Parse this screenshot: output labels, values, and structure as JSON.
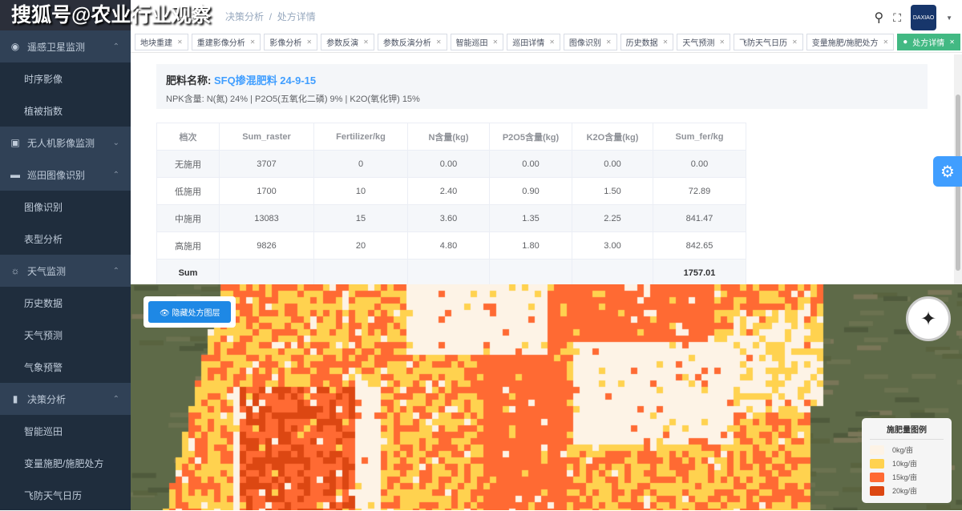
{
  "watermark": "搜狐号@农业行业观察",
  "sidebar": {
    "items": [
      {
        "label": "遥感卫星监测",
        "group": true,
        "icon": "eye-icon",
        "glyph": "◉",
        "chev": "⌃"
      },
      {
        "label": "时序影像"
      },
      {
        "label": "植被指数"
      },
      {
        "label": "无人机影像监测",
        "group": true,
        "icon": "camera-icon",
        "glyph": "▣",
        "chev": "⌄"
      },
      {
        "label": "巡田图像识别",
        "group": true,
        "icon": "truck-icon",
        "glyph": "▬",
        "chev": "⌃"
      },
      {
        "label": "图像识别"
      },
      {
        "label": "表型分析"
      },
      {
        "label": "天气监测",
        "group": true,
        "icon": "sun-icon",
        "glyph": "☼",
        "chev": "⌃"
      },
      {
        "label": "历史数据"
      },
      {
        "label": "天气预测"
      },
      {
        "label": "气象预警"
      },
      {
        "label": "决策分析",
        "group": true,
        "icon": "bar-chart-icon",
        "glyph": "▮",
        "chev": "⌃"
      },
      {
        "label": "智能巡田"
      },
      {
        "label": "变量施肥/施肥处方"
      },
      {
        "label": "飞防天气日历"
      }
    ]
  },
  "breadcrumb": {
    "parent": "决策分析",
    "sep": "/",
    "current": "处方详情"
  },
  "header": {
    "avatar_text": "DAXIAO"
  },
  "tags": [
    "地块重建",
    "重建影像分析",
    "影像分析",
    "参数反演",
    "参数反演分析",
    "智能巡田",
    "巡田详情",
    "图像识别",
    "历史数据",
    "天气预测",
    "飞防天气日历",
    "变量施肥/施肥处方",
    "处方详情"
  ],
  "active_tag": "处方详情",
  "fertilizer": {
    "name_label": "肥料名称:",
    "name": "SFQ掺混肥料 24-9-15",
    "npk": "NPK含量: N(氮) 24% | P2O5(五氧化二磷) 9% | K2O(氧化钾) 15%"
  },
  "table": {
    "headers": [
      "档次",
      "Sum_raster",
      "Fertilizer/kg",
      "N含量(kg)",
      "P2O5含量(kg)",
      "K2O含量(kg)",
      "Sum_fer/kg"
    ],
    "rows": [
      [
        "无施用",
        "3707",
        "0",
        "0.00",
        "0.00",
        "0.00",
        "0.00"
      ],
      [
        "低施用",
        "1700",
        "10",
        "2.40",
        "0.90",
        "1.50",
        "72.89"
      ],
      [
        "中施用",
        "13083",
        "15",
        "3.60",
        "1.35",
        "2.25",
        "841.47"
      ],
      [
        "高施用",
        "9826",
        "20",
        "4.80",
        "1.80",
        "3.00",
        "842.65"
      ]
    ],
    "sum": [
      "Sum",
      "",
      "",
      "",
      "",
      "",
      "1757.01"
    ]
  },
  "map": {
    "hide_layer_button": "隐藏处方图层",
    "legend": {
      "title": "施肥量图例",
      "items": [
        {
          "label": "0kg/亩",
          "color": "#fdf3e6"
        },
        {
          "label": "10kg/亩",
          "color": "#ffd24f"
        },
        {
          "label": "15kg/亩",
          "color": "#ff6a33"
        },
        {
          "label": "20kg/亩",
          "color": "#dc4712"
        }
      ]
    }
  }
}
